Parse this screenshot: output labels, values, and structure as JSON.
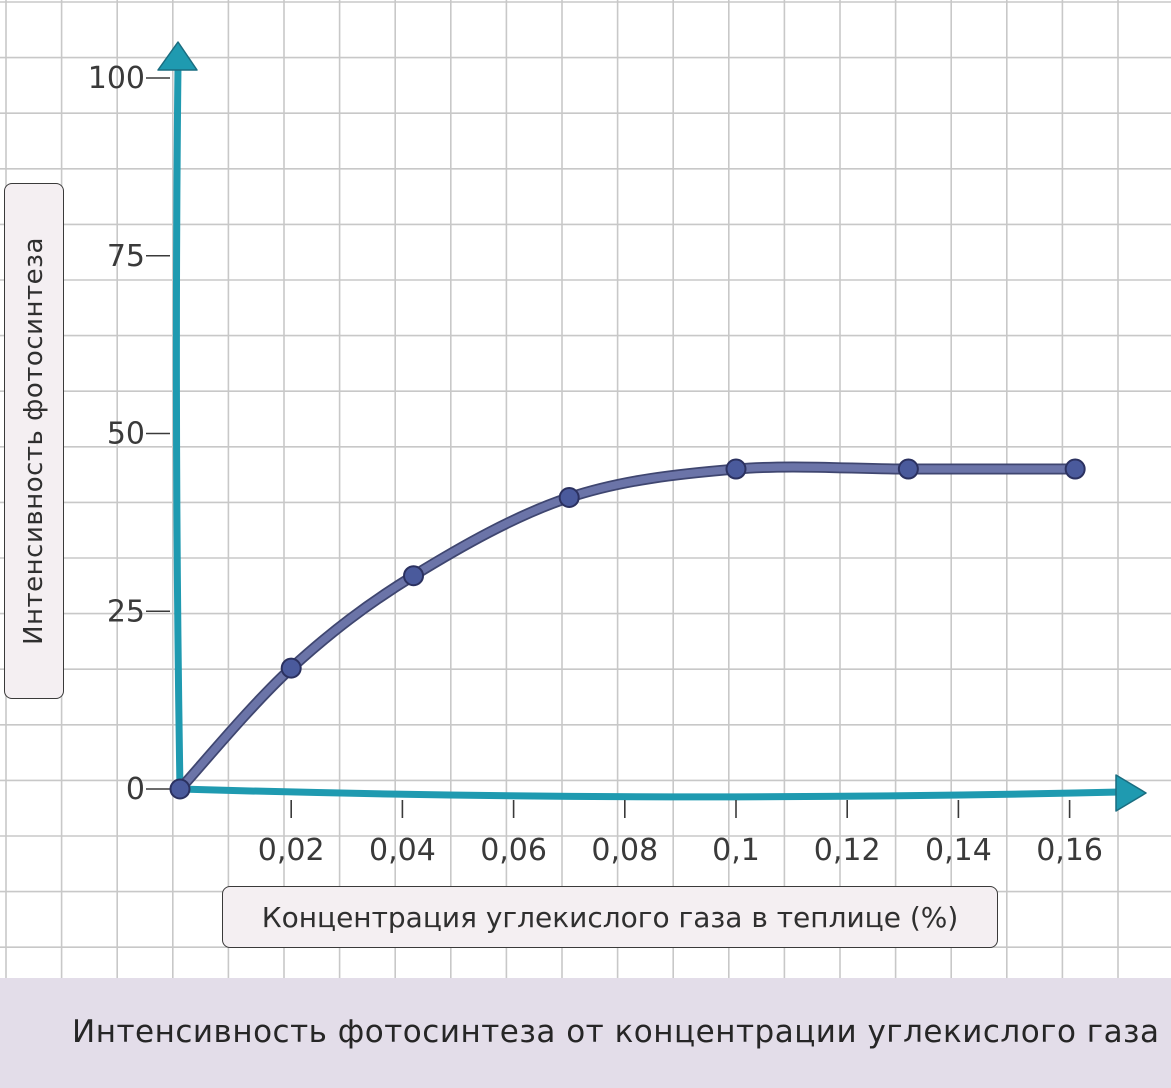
{
  "caption": "Интенсивность фотосинтеза от концентрации углекислого газа",
  "colors": {
    "axis": "#1f9ab0",
    "line": "#6b74a8",
    "marker": "#4a5a9c",
    "grid": "#c8c8c8",
    "caption_bg": "#e3dde9",
    "label_bg": "#f4eff2"
  },
  "chart_data": {
    "type": "line",
    "xlabel": "Концентрация углекислого газа в теплице (%)",
    "ylabel": "Интенсивность фотосинтеза",
    "x_ticks": [
      "0,02",
      "0,04",
      "0,06",
      "0,08",
      "0,1",
      "0,12",
      "0,14",
      "0,16"
    ],
    "x_tick_values": [
      0.02,
      0.04,
      0.06,
      0.08,
      0.1,
      0.12,
      0.14,
      0.16
    ],
    "y_ticks": [
      "0",
      "25",
      "50",
      "75",
      "100"
    ],
    "y_tick_values": [
      0,
      25,
      50,
      75,
      100
    ],
    "xlim": [
      0,
      0.17
    ],
    "ylim": [
      0,
      100
    ],
    "grid": true,
    "series": [
      {
        "x": [
          0,
          0.02,
          0.042,
          0.07,
          0.1,
          0.131,
          0.161
        ],
        "y": [
          0,
          17,
          30,
          41,
          45,
          45,
          45
        ]
      }
    ]
  }
}
